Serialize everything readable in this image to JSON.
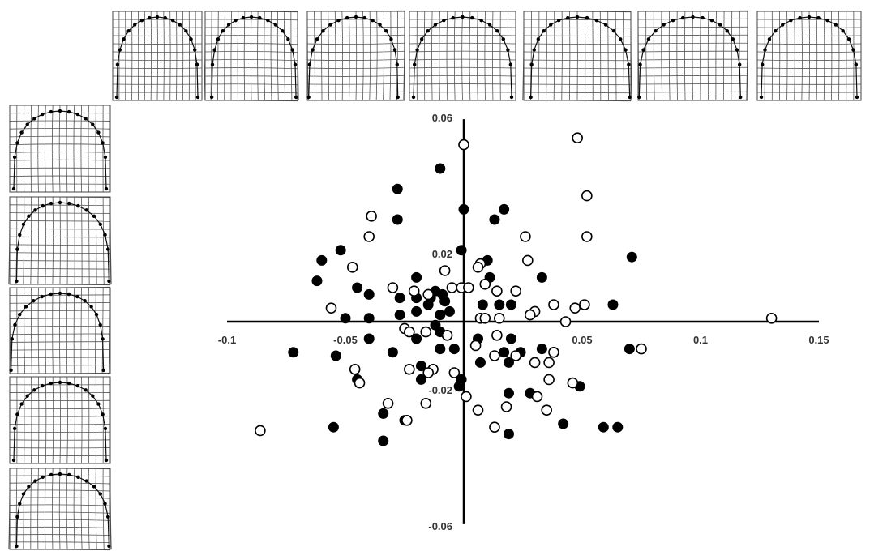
{
  "chart_data": {
    "type": "scatter",
    "title": "",
    "xlabel": "",
    "ylabel": "",
    "xlim": [
      -0.1,
      0.15
    ],
    "ylim": [
      -0.06,
      0.06
    ],
    "x_ticks": [
      "-0.1",
      "-0.05",
      "0.05",
      "0.1",
      "0.15"
    ],
    "y_ticks": [
      "0.06",
      "0.02",
      "-0.02",
      "-0.06"
    ],
    "grid": false,
    "legend": "none",
    "marker_colors": {
      "filled": "#000000",
      "open": "#ffffff",
      "edge": "#000000"
    },
    "series": [
      {
        "marker": "filled-circle",
        "points": [
          [
            -0.01,
            0.045
          ],
          [
            -0.028,
            0.039
          ],
          [
            -0.028,
            0.03
          ],
          [
            0,
            0.033
          ],
          [
            0.017,
            0.033
          ],
          [
            0.013,
            0.03
          ],
          [
            -0.052,
            0.021
          ],
          [
            -0.06,
            0.018
          ],
          [
            -0.001,
            0.021
          ],
          [
            0.01,
            0.018
          ],
          [
            0.071,
            0.019
          ],
          [
            -0.062,
            0.012
          ],
          [
            -0.045,
            0.01
          ],
          [
            -0.04,
            0.008
          ],
          [
            -0.02,
            0.013
          ],
          [
            0.011,
            0.013
          ],
          [
            0.033,
            0.013
          ],
          [
            -0.027,
            0.007
          ],
          [
            -0.02,
            0.007
          ],
          [
            -0.014,
            0.007
          ],
          [
            -0.012,
            0.009
          ],
          [
            -0.009,
            0.008
          ],
          [
            -0.008,
            0.006
          ],
          [
            -0.015,
            0.005
          ],
          [
            0.008,
            0.005
          ],
          [
            0.015,
            0.005
          ],
          [
            0.02,
            0.005
          ],
          [
            0.063,
            0.005
          ],
          [
            -0.05,
            0.001
          ],
          [
            -0.04,
            0.001
          ],
          [
            -0.027,
            0.002
          ],
          [
            -0.02,
            0.003
          ],
          [
            -0.01,
            0.002
          ],
          [
            -0.006,
            0.003
          ],
          [
            0.028,
            0.002
          ],
          [
            -0.04,
            -0.005
          ],
          [
            -0.02,
            -0.005
          ],
          [
            -0.012,
            -0.001
          ],
          [
            -0.01,
            -0.003
          ],
          [
            -0.004,
            -0.008
          ],
          [
            -0.01,
            -0.008
          ],
          [
            0.006,
            -0.005
          ],
          [
            0.02,
            -0.005
          ],
          [
            -0.072,
            -0.009
          ],
          [
            -0.054,
            -0.01
          ],
          [
            -0.03,
            -0.009
          ],
          [
            0.017,
            -0.009
          ],
          [
            0.024,
            -0.009
          ],
          [
            0.033,
            -0.008
          ],
          [
            0.07,
            -0.008
          ],
          [
            -0.018,
            -0.013
          ],
          [
            0.007,
            -0.012
          ],
          [
            0.019,
            -0.012
          ],
          [
            -0.045,
            -0.017
          ],
          [
            -0.018,
            -0.017
          ],
          [
            -0.001,
            -0.017
          ],
          [
            -0.002,
            -0.019
          ],
          [
            0.019,
            -0.021
          ],
          [
            0.028,
            -0.021
          ],
          [
            0.049,
            -0.019
          ],
          [
            -0.034,
            -0.027
          ],
          [
            -0.025,
            -0.029
          ],
          [
            0.042,
            -0.03
          ],
          [
            -0.055,
            -0.031
          ],
          [
            0.059,
            -0.031
          ],
          [
            0.065,
            -0.031
          ],
          [
            0.019,
            -0.033
          ],
          [
            -0.034,
            -0.035
          ]
        ]
      },
      {
        "marker": "open-circle",
        "points": [
          [
            0.048,
            0.054
          ],
          [
            0,
            0.052
          ],
          [
            0.052,
            0.037
          ],
          [
            -0.039,
            0.031
          ],
          [
            -0.04,
            0.025
          ],
          [
            0.052,
            0.025
          ],
          [
            0.026,
            0.025
          ],
          [
            0.027,
            0.018
          ],
          [
            -0.047,
            0.016
          ],
          [
            0.007,
            0.017
          ],
          [
            0.006,
            0.016
          ],
          [
            -0.008,
            0.015
          ],
          [
            0.009,
            0.011
          ],
          [
            -0.03,
            0.01
          ],
          [
            -0.021,
            0.009
          ],
          [
            -0.015,
            0.008
          ],
          [
            -0.005,
            0.01
          ],
          [
            -0.001,
            0.01
          ],
          [
            0.002,
            0.01
          ],
          [
            0.014,
            0.009
          ],
          [
            0.022,
            0.009
          ],
          [
            0.038,
            0.005
          ],
          [
            0.047,
            0.004
          ],
          [
            0.051,
            0.005
          ],
          [
            -0.056,
            0.004
          ],
          [
            0.03,
            0.003
          ],
          [
            0.007,
            0.001
          ],
          [
            0.009,
            0.001
          ],
          [
            0.015,
            0.001
          ],
          [
            0.028,
            0.002
          ],
          [
            0.043,
            0.0
          ],
          [
            -0.025,
            -0.002
          ],
          [
            -0.023,
            -0.003
          ],
          [
            -0.016,
            -0.003
          ],
          [
            -0.007,
            -0.004
          ],
          [
            0.014,
            -0.004
          ],
          [
            0.005,
            -0.007
          ],
          [
            0.038,
            -0.009
          ],
          [
            0.013,
            -0.01
          ],
          [
            0.022,
            -0.01
          ],
          [
            0.03,
            -0.012
          ],
          [
            0.036,
            -0.012
          ],
          [
            -0.046,
            -0.014
          ],
          [
            -0.023,
            -0.014
          ],
          [
            -0.013,
            -0.014
          ],
          [
            -0.015,
            -0.015
          ],
          [
            -0.004,
            -0.015
          ],
          [
            -0.044,
            -0.018
          ],
          [
            0.036,
            -0.017
          ],
          [
            0.046,
            -0.018
          ],
          [
            0.001,
            -0.022
          ],
          [
            0.031,
            -0.022
          ],
          [
            -0.032,
            -0.024
          ],
          [
            -0.016,
            -0.024
          ],
          [
            0.006,
            -0.026
          ],
          [
            0.018,
            -0.025
          ],
          [
            0.035,
            -0.026
          ],
          [
            -0.024,
            -0.029
          ],
          [
            0.013,
            -0.031
          ],
          [
            -0.086,
            -0.032
          ],
          [
            0.075,
            -0.008
          ],
          [
            0.13,
            0.001
          ]
        ]
      }
    ],
    "shape_panels": {
      "top": [
        "shape-1",
        "shape-2",
        "shape-3",
        "shape-4",
        "shape-5",
        "shape-6",
        "shape-7"
      ],
      "left": [
        "shape-1",
        "shape-2",
        "shape-3",
        "shape-4",
        "shape-5"
      ]
    }
  }
}
